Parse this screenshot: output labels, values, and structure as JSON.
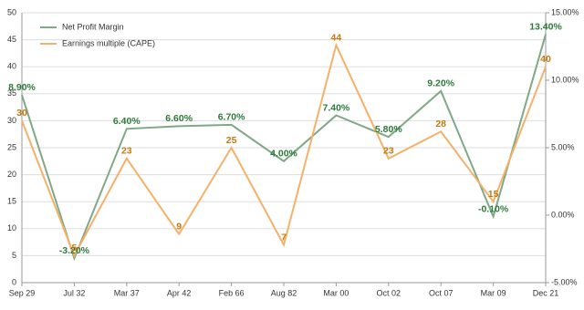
{
  "chart_data": {
    "type": "line",
    "categories": [
      "Sep 29",
      "Jul 32",
      "Mar 37",
      "Apr 42",
      "Feb 66",
      "Aug 82",
      "Mar 00",
      "Oct 02",
      "Oct 07",
      "Mar 09",
      "Dec 21"
    ],
    "series": [
      {
        "name": "Net Profit Margin",
        "color": "#7fa886",
        "label_color": "#2e7a3a",
        "axis": "y2",
        "values": [
          8.9,
          -3.2,
          6.4,
          6.6,
          6.7,
          4.0,
          7.4,
          5.8,
          9.2,
          -0.1,
          13.4
        ],
        "value_labels": [
          "8.90%",
          "-3.20%",
          "6.40%",
          "6.60%",
          "6.70%",
          "4.00%",
          "7.40%",
          "5.80%",
          "9.20%",
          "-0.10%",
          "13.40%"
        ]
      },
      {
        "name": "Earnings multiple (CAPE)",
        "color": "#f5b06a",
        "label_color": "#c7780f",
        "values": [
          30,
          5,
          23,
          9,
          25,
          7,
          44,
          23,
          28,
          15,
          40
        ]
      }
    ],
    "ylim": [
      0,
      50
    ],
    "yticks": [
      0,
      5,
      10,
      15,
      20,
      25,
      30,
      35,
      40,
      45,
      50
    ],
    "y2lim": [
      -5,
      15
    ],
    "y2ticks": [
      {
        "value": -5,
        "label": "-5.00%"
      },
      {
        "value": 0,
        "label": "0.00%"
      },
      {
        "value": 5,
        "label": "5.00%"
      },
      {
        "value": 10,
        "label": "10.00%"
      },
      {
        "value": 15,
        "label": "15.00%"
      }
    ],
    "grid": true,
    "legend": "upper left"
  }
}
